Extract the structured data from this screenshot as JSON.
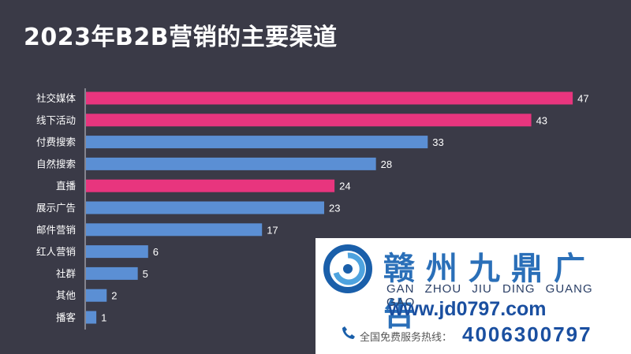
{
  "chart_data": {
    "type": "bar",
    "orientation": "horizontal",
    "title": "2023年B2B营销的主要渠道",
    "categories": [
      "社交媒体",
      "线下活动",
      "付费搜索",
      "自然搜索",
      "直播",
      "展示广告",
      "邮件营销",
      "红人营销",
      "社群",
      "其他",
      "播客"
    ],
    "values": [
      47,
      43,
      33,
      28,
      24,
      23,
      17,
      6,
      5,
      2,
      1
    ],
    "bar_colors": [
      "#e8357e",
      "#e8357e",
      "#5b8fd4",
      "#5b8fd4",
      "#e8357e",
      "#5b8fd4",
      "#5b8fd4",
      "#5b8fd4",
      "#5b8fd4",
      "#5b8fd4",
      "#5b8fd4"
    ],
    "xlim": [
      0,
      50
    ],
    "grid": false,
    "legend": "none"
  },
  "watermark": {
    "logo_icon": "swirl-logo-icon",
    "name_cn": "赣州九鼎广告",
    "name_pinyin": "GAN ZHOU JIU DING GUANG GAO",
    "url": "www.jd0797.com",
    "phone_icon": "phone-icon",
    "phone_label": "全国免费服务热线：",
    "phone": "4006300797"
  }
}
